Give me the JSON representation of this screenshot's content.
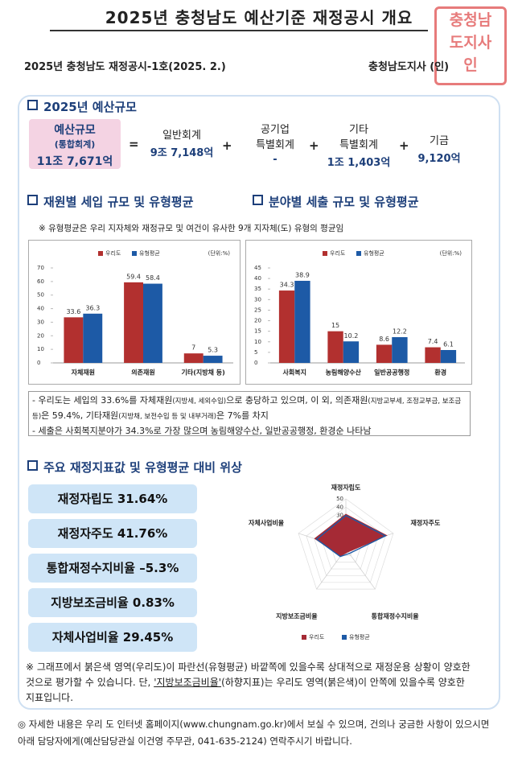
{
  "header": {
    "title": "2025년 충청남도 예산기준 재정공시 개요",
    "issue": "2025년 충청남도 재정공시-1호(2025. 2.)",
    "issuer": "충청남도지사 (인)",
    "stamp": [
      "충청남",
      "도지사",
      "인"
    ]
  },
  "budget": {
    "heading": "2025년 예산규모",
    "total": {
      "label": "예산규모",
      "sub": "(통합회계)",
      "value": "11조 7,671억"
    },
    "operators": [
      "=",
      "+",
      "+",
      "+"
    ],
    "items": [
      {
        "label": [
          "일반회계"
        ],
        "value": "9조 7,148억"
      },
      {
        "label": [
          "공기업",
          "특별회계"
        ],
        "value": "-"
      },
      {
        "label": [
          "기타",
          "특별회계"
        ],
        "value": "1조 1,403억"
      },
      {
        "label": [
          "기금"
        ],
        "value": "9,120억"
      }
    ]
  },
  "analysis": {
    "revenue_heading": "재원별 세입 규모 및 유형평균",
    "expenditure_heading": "분야별 세출 규모 및 유형평균",
    "note": "※ 유형평균은 우리 지자체와 재정규모 및 여건이 유사한 9개 지자체(도) 유형의 평균임"
  },
  "chart_data": [
    {
      "type": "bar",
      "unit": "(단위:%)",
      "categories": [
        "자체재원",
        "의존재원",
        "기타(지방채 등)"
      ],
      "series": [
        {
          "name": "우리도",
          "color": "#b2302f",
          "values": [
            33.6,
            59.4,
            7
          ]
        },
        {
          "name": "유형평균",
          "color": "#1d5aa6",
          "values": [
            36.3,
            58.4,
            5.3
          ]
        }
      ],
      "ylim": [
        0,
        70
      ],
      "yticks": [
        0,
        10,
        20,
        30,
        40,
        50,
        60,
        70
      ]
    },
    {
      "type": "bar",
      "unit": "(단위:%)",
      "categories": [
        "사회복지",
        "농림해양수산",
        "일반공공행정",
        "환경"
      ],
      "series": [
        {
          "name": "우리도",
          "color": "#b2302f",
          "values": [
            34.3,
            15,
            8.6,
            7.4
          ]
        },
        {
          "name": "유형평균",
          "color": "#1d5aa6",
          "values": [
            38.9,
            10.2,
            12.2,
            6.1
          ]
        }
      ],
      "ylim": [
        0,
        45
      ],
      "yticks": [
        0,
        5,
        10,
        15,
        20,
        25,
        30,
        35,
        40,
        45
      ]
    },
    {
      "type": "radar",
      "categories": [
        "재정자립도",
        "재정자주도",
        "통합재정수지비율",
        "지방보조금비율",
        "자체사업비율"
      ],
      "series": [
        {
          "name": "우리도",
          "color": "#a52a35",
          "values": [
            31.64,
            41.76,
            -5.3,
            0.83,
            29.45
          ]
        },
        {
          "name": "유형평균",
          "color": "#1d5aa6",
          "values": [
            30,
            40,
            -3,
            1.5,
            27
          ]
        }
      ],
      "ylim": [
        -10,
        50
      ],
      "yticks": [
        -10,
        0,
        10,
        20,
        30,
        40,
        50
      ]
    }
  ],
  "summary": {
    "bullet1": [
      "- 우리도는 세입의 33.6%를 자체재원",
      "(지방세, 세외수입)",
      "으로 충당하고 있으며, 이 외, 의존재원",
      "(지방교부세, 조정교부금, 보조금 등)",
      "은 59.4%, 기타재원",
      "(지방채, 보전수입 등 및 내부거래)",
      "은 7%를 차지"
    ],
    "bullet2": "- 세출은 사회복지분야가 34.3%로 가장 많으며 농림해양수산, 일반공공행정, 환경순 나타남"
  },
  "indicators": {
    "heading": "주요 재정지표값 및 유형평균 대비 위상",
    "items": [
      "재정자립도 31.64%",
      "재정자주도 41.76%",
      "통합재정수지비율 –5.3%",
      "지방보조금비율 0.83%",
      "자체사업비율 29.45%"
    ]
  },
  "note": [
    "※ 그래프에서 붉은색 영역(우리도)이 파란선(유형평균) 바깥쪽에 있을수록 상대적으로 재정운용 상황이 양호한 것으로 평가할 수 있습니다. 단, ",
    "'지방보조금비율'",
    "(하향지표)는 우리도 영역(붉은색)이 안쪽에 있을수록 양호한 지표입니다."
  ],
  "footer": "◎ 자세한 내용은 우리 도 인터넷 홈페이지(www.chungnam.go.kr)에서 보실 수 있으며, 건의나 궁금한 사항이 있으시면 아래 담당자에게(예산담당관실 이건영 주무관, 041-635-2124) 연락주시기 바랍니다."
}
